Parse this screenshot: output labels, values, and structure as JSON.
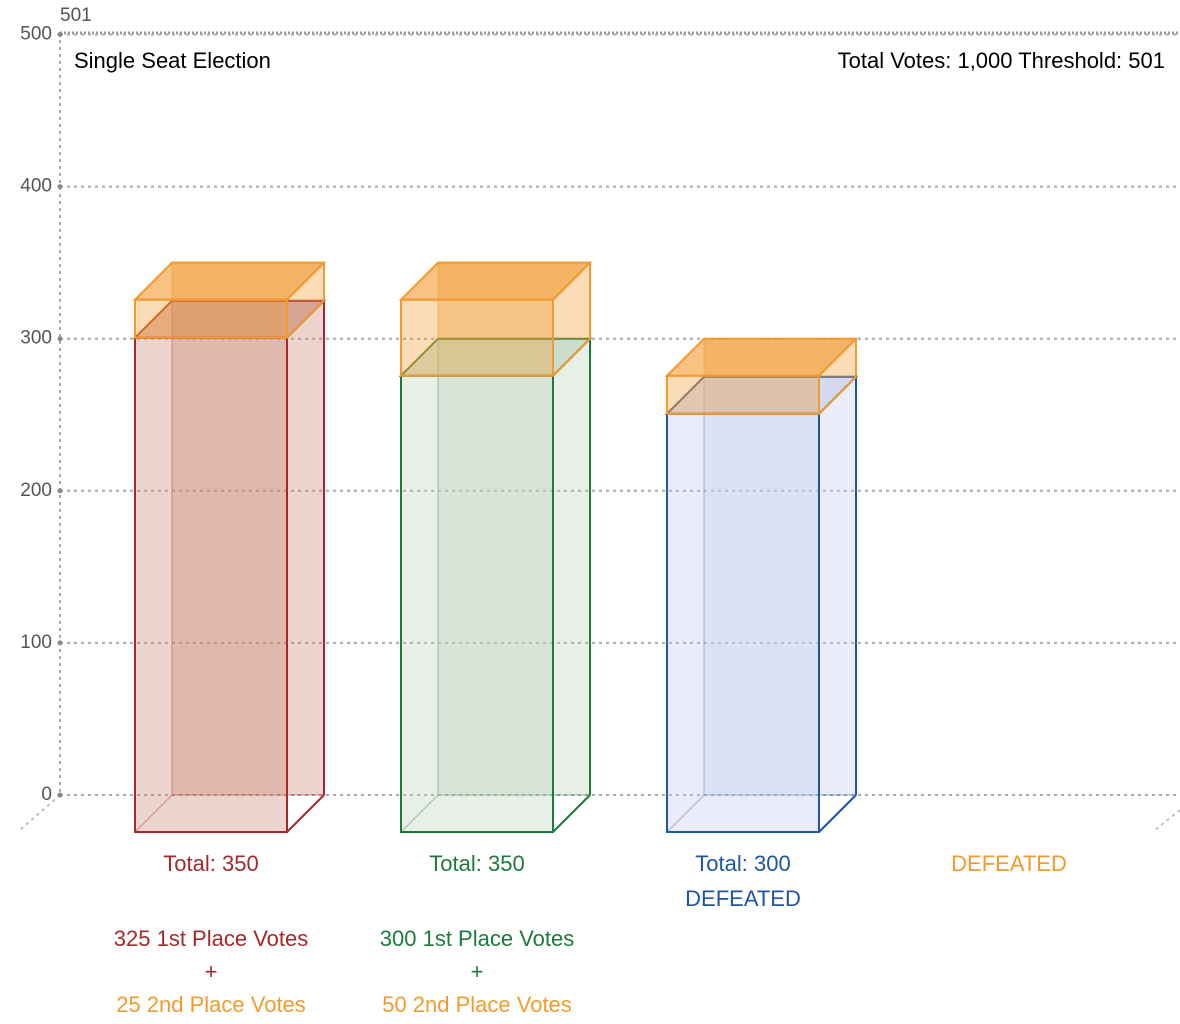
{
  "chart_data": {
    "type": "bar3d",
    "title": "Single Seat Election",
    "subtitle": "Total Votes: 1,000  Threshold: 501",
    "categories": [
      null,
      null,
      null,
      null
    ],
    "series": [
      {
        "values": [
          325,
          300,
          275,
          null
        ]
      },
      {
        "values": [
          25,
          50,
          25,
          null
        ],
        "color": "#f29a2e"
      }
    ],
    "bar_colors": [
      "#a32a2a",
      "#1e7a3c",
      "#1f55a5",
      "#f29a2e"
    ],
    "bar_fills": [
      "#c98672",
      "#b9d1bb",
      "#c3cbee",
      "#f29a2e"
    ],
    "totals": [
      "Total: 350",
      "Total: 350",
      "Total: 300",
      null
    ],
    "status": [
      null,
      null,
      "DEFEATED",
      "DEFEATED"
    ],
    "breakdown": [
      [
        "325 1st Place Votes",
        "+",
        "25 2nd Place Votes"
      ],
      [
        "300 1st Place Votes",
        "+",
        "50 2nd Place Votes"
      ],
      null,
      null
    ],
    "threshold": 501,
    "ylim": [
      0,
      501
    ],
    "yticks": [
      0,
      100,
      200,
      300,
      400,
      500
    ],
    "grid": true
  }
}
